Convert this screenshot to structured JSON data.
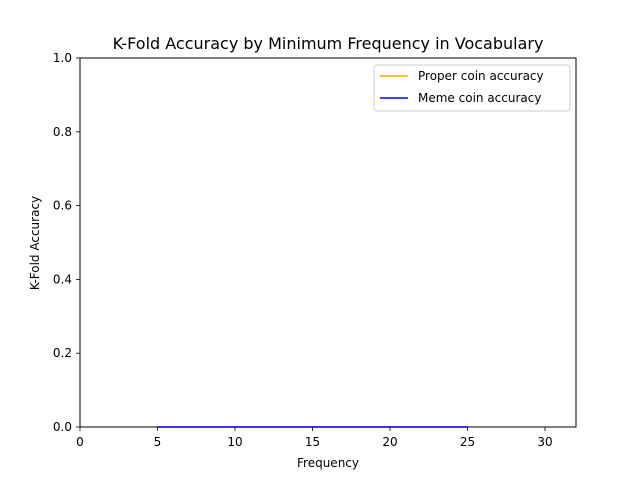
{
  "chart_data": {
    "type": "line",
    "title": "K-Fold Accuracy by Minimum Frequency in Vocabulary",
    "xlabel": "Frequency",
    "ylabel": "K-Fold Accuracy",
    "xlim": [
      0,
      32
    ],
    "ylim": [
      0.0,
      1.0
    ],
    "xticks": [
      0,
      5,
      10,
      15,
      20,
      25,
      30
    ],
    "xtick_labels": [
      "0",
      "5",
      "10",
      "15",
      "20",
      "25",
      "30"
    ],
    "yticks": [
      0.0,
      0.2,
      0.4,
      0.6,
      0.8,
      1.0
    ],
    "ytick_labels": [
      "0.0",
      "0.2",
      "0.4",
      "0.6",
      "0.8",
      "1.0"
    ],
    "grid": false,
    "legend_position": "top-right",
    "series": [
      {
        "name": "Proper coin accuracy",
        "color": "#ffa500",
        "x": [
          5,
          10,
          15,
          20,
          25
        ],
        "y": [
          0.0,
          0.0,
          0.0,
          0.0,
          0.0
        ]
      },
      {
        "name": "Meme coin accuracy",
        "color": "#0000ff",
        "x": [
          5,
          10,
          15,
          20,
          25
        ],
        "y": [
          0.0,
          0.0,
          0.0,
          0.0,
          0.0
        ]
      }
    ]
  }
}
